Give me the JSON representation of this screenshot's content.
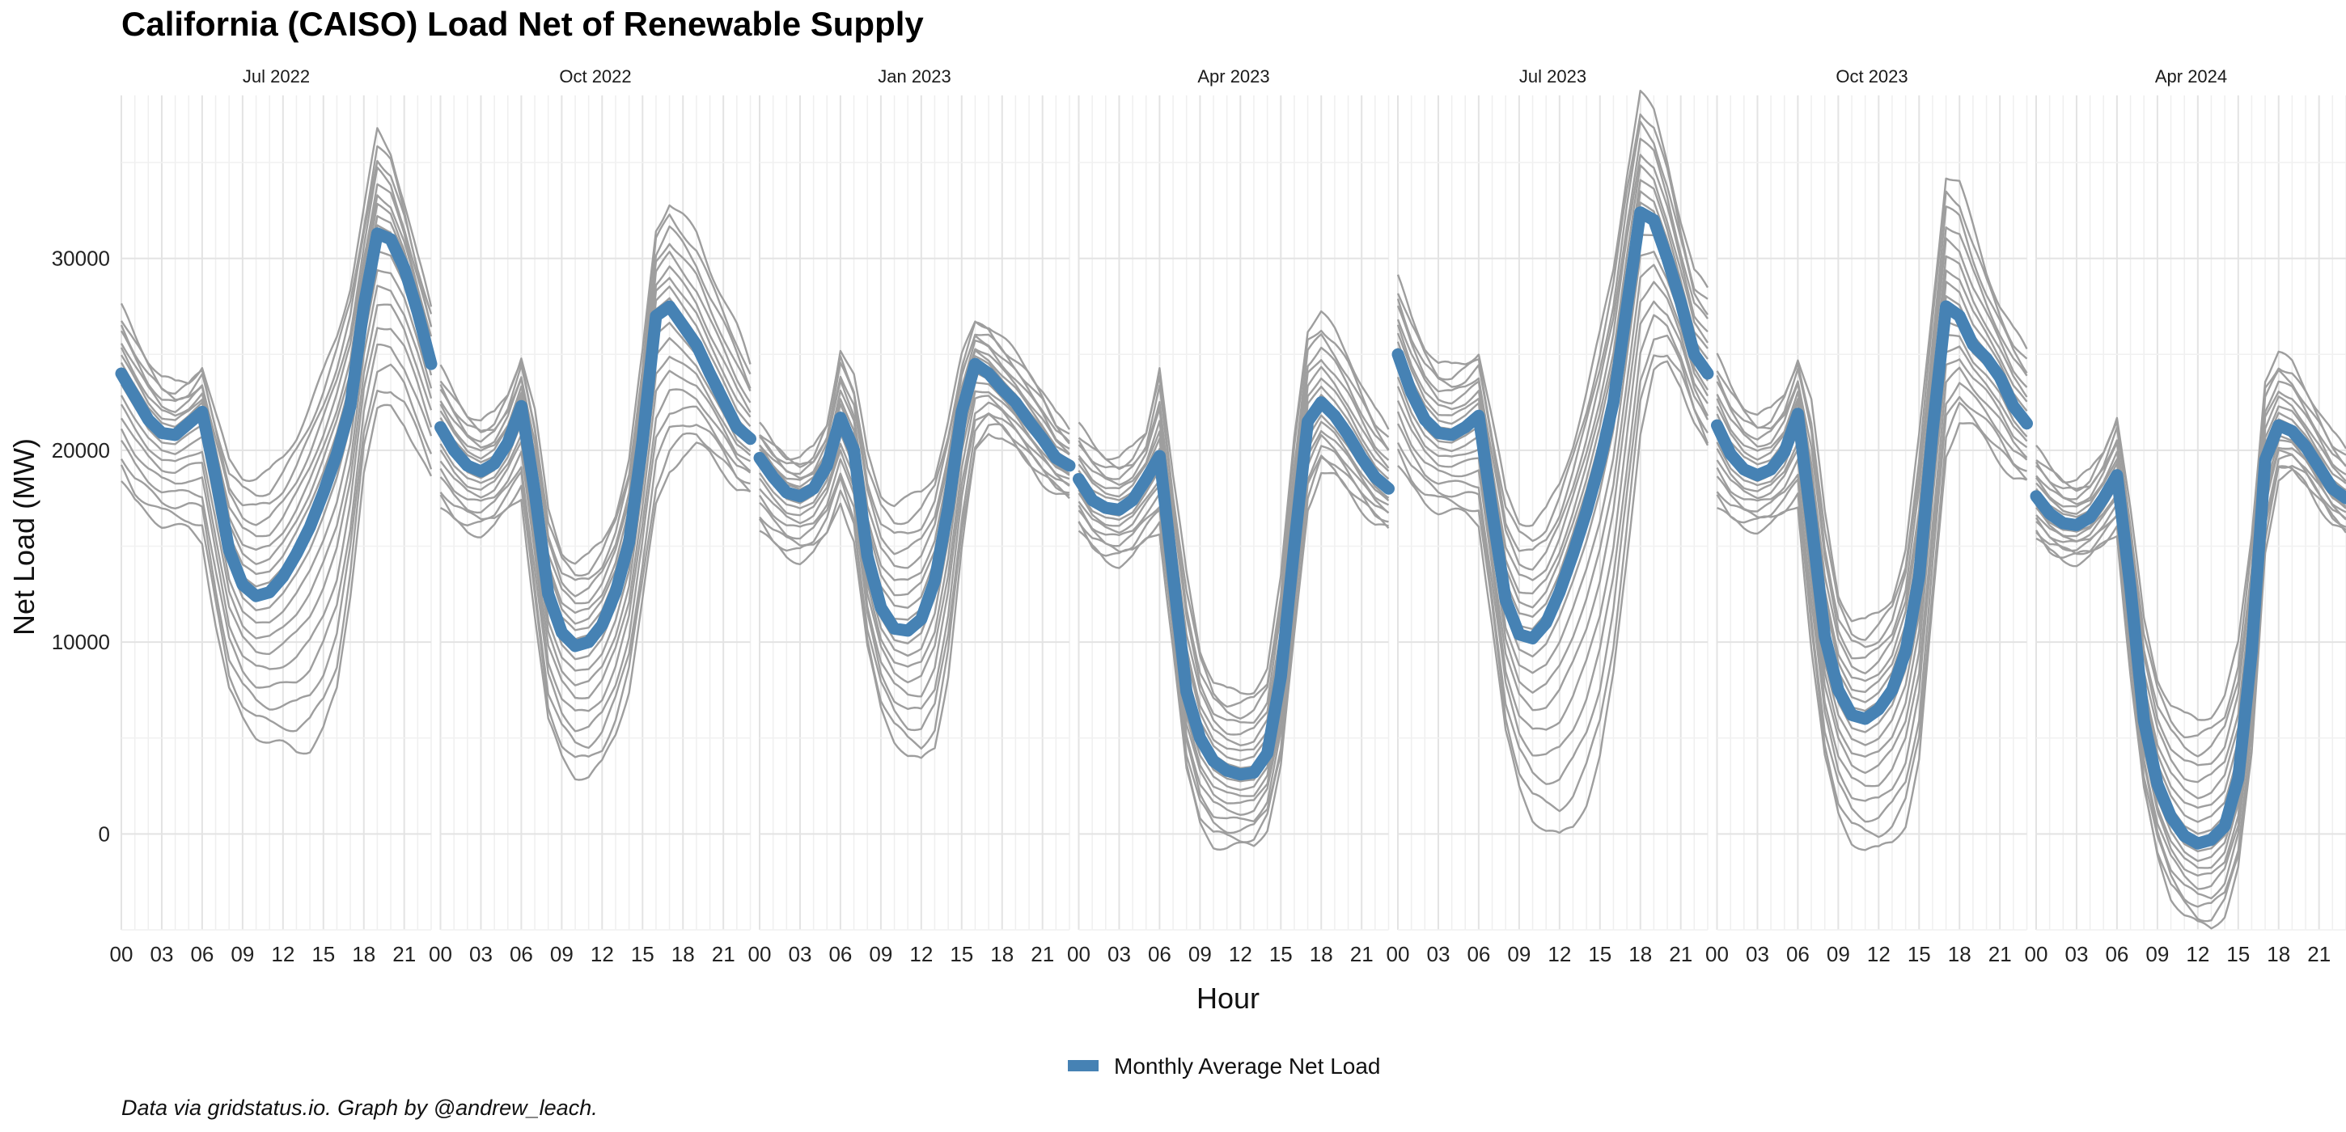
{
  "chart_data": {
    "type": "line",
    "title": "California (CAISO) Load Net of Renewable Supply",
    "xlabel": "Hour",
    "ylabel": "Net Load (MW)",
    "x_ticks": [
      "00",
      "03",
      "06",
      "09",
      "12",
      "15",
      "18",
      "21"
    ],
    "y_ticks": [
      0,
      10000,
      20000,
      30000
    ],
    "ylim": [
      -5000,
      38500
    ],
    "xlim": [
      0,
      23
    ],
    "grid": true,
    "legend_position": "bottom",
    "legend": [
      {
        "name": "Monthly Average Net Load",
        "color": "#4682B4"
      }
    ],
    "caption": "Data via gridstatus.io. Graph by @andrew_leach.",
    "x": [
      0,
      1,
      2,
      3,
      4,
      5,
      6,
      7,
      8,
      9,
      10,
      11,
      12,
      13,
      14,
      15,
      16,
      17,
      18,
      19,
      20,
      21,
      22,
      23
    ],
    "panels": [
      {
        "label": "Jul 2022",
        "average": [
          24000,
          22800,
          21600,
          20900,
          20800,
          21400,
          22000,
          18600,
          14800,
          13000,
          12400,
          12600,
          13400,
          14600,
          16000,
          17800,
          19800,
          22300,
          27500,
          31300,
          31000,
          29500,
          27200,
          24500
        ],
        "daily_envelope": {
          "low": [
            18400,
            17200,
            16700,
            16200,
            16000,
            15800,
            15300,
            11000,
            7400,
            6000,
            5200,
            4800,
            4600,
            4300,
            4500,
            5500,
            7400,
            12500,
            19000,
            22000,
            22200,
            21500,
            20000,
            18400
          ],
          "high": [
            27400,
            26000,
            24800,
            23800,
            23400,
            23600,
            24500,
            21800,
            19400,
            18700,
            18600,
            18800,
            19600,
            20800,
            22300,
            24000,
            26000,
            28600,
            32500,
            36600,
            35600,
            33000,
            30000,
            27400
          ]
        }
      },
      {
        "label": "Oct 2022",
        "average": [
          21200,
          20000,
          19200,
          18900,
          19300,
          20400,
          22300,
          17800,
          12500,
          10500,
          9800,
          10000,
          10900,
          12600,
          15200,
          20500,
          27000,
          27500,
          26500,
          25500,
          24000,
          22600,
          21200,
          20600
        ],
        "daily_envelope": {
          "low": [
            17000,
            16200,
            15800,
            15700,
            16000,
            16800,
            17600,
            11500,
            5800,
            4000,
            3100,
            3000,
            3600,
            5200,
            7600,
            12200,
            17000,
            19000,
            19800,
            20200,
            19800,
            19000,
            18000,
            17600
          ],
          "high": [
            24200,
            23000,
            22000,
            21500,
            21800,
            23000,
            25000,
            22000,
            16800,
            14800,
            14200,
            14400,
            15200,
            16800,
            19500,
            25000,
            31500,
            33000,
            32200,
            31200,
            29500,
            28000,
            26400,
            24400
          ]
        }
      },
      {
        "label": "Jan 2023",
        "average": [
          19600,
          18600,
          17800,
          17600,
          18000,
          19200,
          21700,
          20000,
          14500,
          11800,
          10700,
          10600,
          11200,
          13200,
          17000,
          22000,
          24500,
          24000,
          23200,
          22500,
          21500,
          20600,
          19600,
          19200
        ],
        "daily_envelope": {
          "low": [
            15800,
            15000,
            14500,
            14300,
            14600,
            15500,
            17400,
            15400,
            9600,
            6500,
            5000,
            4100,
            3700,
            4500,
            8400,
            14800,
            19800,
            21000,
            20800,
            20000,
            19200,
            18400,
            17800,
            17400
          ],
          "high": [
            21200,
            20400,
            19800,
            19600,
            20000,
            21400,
            25400,
            23800,
            19800,
            17800,
            17200,
            17400,
            17800,
            18800,
            21500,
            24800,
            26800,
            26600,
            25800,
            25000,
            24200,
            23200,
            21800,
            21000
          ]
        }
      },
      {
        "label": "Apr 2023",
        "average": [
          18500,
          17400,
          17000,
          16900,
          17400,
          18500,
          19700,
          13500,
          7400,
          5000,
          3800,
          3300,
          3100,
          3200,
          4200,
          8200,
          15000,
          21500,
          22500,
          21800,
          20800,
          19600,
          18600,
          18000
        ],
        "daily_envelope": {
          "low": [
            15800,
            14800,
            14300,
            14100,
            14400,
            15200,
            15800,
            9800,
            3200,
            500,
            -500,
            -700,
            -700,
            -600,
            400,
            3500,
            10200,
            17000,
            19000,
            18600,
            17800,
            17000,
            16200,
            15800
          ],
          "high": [
            21200,
            20400,
            19800,
            19600,
            20000,
            21000,
            24500,
            18500,
            13500,
            9700,
            8000,
            7400,
            7300,
            7600,
            8600,
            13200,
            20800,
            26400,
            27100,
            26200,
            25000,
            23500,
            22000,
            21000
          ]
        }
      },
      {
        "label": "Jul 2023",
        "average": [
          25000,
          23000,
          21600,
          20900,
          20800,
          21200,
          21800,
          16800,
          12200,
          10400,
          10200,
          11000,
          12600,
          14600,
          16800,
          19400,
          22500,
          27500,
          32400,
          32000,
          30000,
          27700,
          25000,
          24000
        ],
        "daily_envelope": {
          "low": [
            19200,
            18000,
            17300,
            16900,
            16800,
            16600,
            16200,
            11000,
            5200,
            2400,
            900,
            200,
            -200,
            400,
            1700,
            4000,
            8200,
            14500,
            21000,
            24000,
            24500,
            23500,
            21500,
            20000
          ],
          "high": [
            28900,
            27000,
            25500,
            24500,
            24300,
            24600,
            25200,
            21500,
            17800,
            16400,
            16200,
            16800,
            18200,
            20400,
            23000,
            26000,
            29500,
            34500,
            38600,
            37600,
            35200,
            32000,
            29200,
            28400
          ]
        }
      },
      {
        "label": "Oct 2023",
        "average": [
          21300,
          19800,
          19000,
          18700,
          19000,
          19900,
          21900,
          16300,
          10300,
          7500,
          6200,
          6000,
          6500,
          7500,
          9500,
          13400,
          21000,
          27500,
          27000,
          25500,
          24800,
          23800,
          22300,
          21400
        ],
        "daily_envelope": {
          "low": [
            17000,
            16300,
            16000,
            15900,
            16100,
            16600,
            17200,
            9800,
            3900,
            1000,
            -300,
            -800,
            -900,
            -400,
            600,
            3800,
            11800,
            19800,
            21600,
            21200,
            20400,
            19500,
            18600,
            18200
          ],
          "high": [
            24800,
            23400,
            22400,
            21800,
            22000,
            23000,
            24900,
            22500,
            16700,
            12600,
            11200,
            11000,
            11500,
            12400,
            14800,
            20600,
            27500,
            34400,
            33900,
            31600,
            29400,
            27600,
            26200,
            25200
          ]
        }
      },
      {
        "label": "Apr 2024",
        "average": [
          17600,
          16700,
          16200,
          16100,
          16500,
          17500,
          18700,
          12800,
          5900,
          2600,
          900,
          -100,
          -500,
          -300,
          400,
          2900,
          9500,
          19500,
          21300,
          21000,
          20200,
          19100,
          18000,
          17500
        ],
        "daily_envelope": {
          "low": [
            15400,
            14600,
            14300,
            14200,
            14400,
            15000,
            15700,
            8400,
            2200,
            -1200,
            -3200,
            -4200,
            -4800,
            -4900,
            -4100,
            -1800,
            4000,
            14800,
            18600,
            18800,
            18200,
            17200,
            16200,
            15600
          ],
          "high": [
            20000,
            19200,
            18600,
            18400,
            18800,
            20000,
            21900,
            16800,
            11100,
            8200,
            6800,
            6100,
            5900,
            6300,
            7200,
            9800,
            15600,
            23800,
            25000,
            24500,
            23300,
            22100,
            20800,
            20000
          ]
        }
      }
    ]
  }
}
